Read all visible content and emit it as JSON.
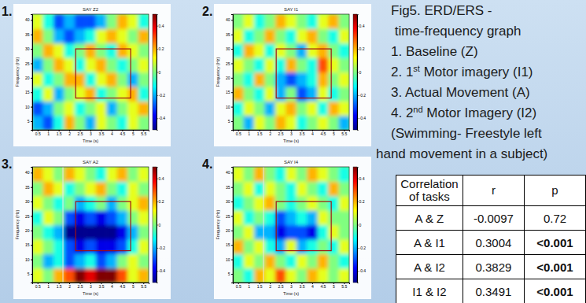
{
  "chart_data": [
    {
      "type": "heatmap",
      "panel_label": "1.",
      "title": "SAY Z2",
      "x_label": "Time (s)",
      "y_label": "Frequency (Hz)",
      "xlim": [
        0.25,
        5.75
      ],
      "ylim": [
        2,
        42
      ],
      "xticks": [
        0.5,
        1,
        1.5,
        2,
        2.5,
        3,
        3.5,
        4,
        4.5,
        5,
        5.5
      ],
      "yticks": [
        5,
        10,
        15,
        20,
        25,
        30,
        35,
        40
      ],
      "x_bins": [
        0.25,
        0.75,
        1.25,
        1.75,
        2.25,
        2.75,
        3.25,
        3.75,
        4.25,
        4.75,
        5.25,
        5.75
      ],
      "y_bins": [
        2,
        7,
        12,
        17,
        22,
        27,
        32,
        37,
        42
      ],
      "cells": [
        [
          -0.2,
          -0.3,
          -0.1,
          0.2,
          0,
          -0.2,
          0.1,
          0,
          -0.1,
          0.1,
          0
        ],
        [
          -0.3,
          -0.2,
          0,
          0.1,
          -0.1,
          0,
          0.1,
          -0.2,
          0,
          0.1,
          0.2
        ],
        [
          -0.1,
          0.1,
          -0.2,
          0,
          0.1,
          0.2,
          -0.1,
          0,
          0.1,
          0.2,
          -0.1
        ],
        [
          0.1,
          -0.1,
          0,
          0.2,
          0.2,
          -0.1,
          0.1,
          0.2,
          0,
          -0.2,
          0
        ],
        [
          -0.2,
          0,
          0.2,
          0.1,
          -0.1,
          0.1,
          0.2,
          0,
          -0.1,
          0,
          0.1
        ],
        [
          0,
          0.2,
          0.1,
          -0.1,
          0,
          0.2,
          0,
          -0.1,
          0.2,
          0.1,
          0
        ],
        [
          0.2,
          0,
          -0.2,
          -0.3,
          -0.2,
          -0.1,
          0.1,
          0.2,
          0.1,
          0,
          0.2
        ],
        [
          0.1,
          -0.1,
          -0.3,
          -0.2,
          -0.3,
          -0.3,
          -0.2,
          0,
          0.2,
          0.1,
          -0.1
        ]
      ],
      "colorbar": {
        "range": [
          -0.5,
          0.5
        ],
        "ticks": [
          -0.4,
          -0.2,
          0,
          0.2,
          0.4
        ]
      },
      "roi": {
        "x": [
          2.3,
          4.9
        ],
        "y": [
          13,
          30
        ]
      }
    },
    {
      "type": "heatmap",
      "panel_label": "2.",
      "title": "SAY I1",
      "x_label": "Time (s)",
      "y_label": "Frequency (Hz)",
      "xlim": [
        0.25,
        5.75
      ],
      "ylim": [
        2,
        42
      ],
      "xticks": [
        0.5,
        1,
        1.5,
        2,
        2.5,
        3,
        3.5,
        4,
        4.5,
        5,
        5.5
      ],
      "yticks": [
        5,
        10,
        15,
        20,
        25,
        30,
        35,
        40
      ],
      "x_bins": [
        0.25,
        0.75,
        1.25,
        1.75,
        2.25,
        2.75,
        3.25,
        3.75,
        4.25,
        4.75,
        5.25,
        5.75
      ],
      "y_bins": [
        2,
        7,
        12,
        17,
        22,
        27,
        32,
        37,
        42
      ],
      "cells": [
        [
          0,
          -0.2,
          0.1,
          0,
          0.2,
          0.1,
          -0.1,
          0,
          0.1,
          0,
          -0.2
        ],
        [
          -0.1,
          0.1,
          0,
          -0.2,
          0.1,
          0.2,
          0,
          0.1,
          -0.1,
          0.2,
          0.1
        ],
        [
          0.2,
          0,
          -0.1,
          0.1,
          -0.2,
          0,
          -0.3,
          -0.2,
          0.1,
          -0.1,
          0
        ],
        [
          0,
          -0.1,
          0.2,
          0,
          -0.2,
          -0.3,
          -0.2,
          -0.1,
          0.2,
          0,
          0.1
        ],
        [
          0.1,
          0,
          -0.1,
          0.1,
          -0.1,
          0.2,
          0,
          -0.1,
          0.3,
          0.1,
          0
        ],
        [
          -0.1,
          0.2,
          0.1,
          -0.1,
          0.1,
          0,
          -0.2,
          0.1,
          0.2,
          0,
          -0.1
        ],
        [
          0.1,
          -0.1,
          0,
          0.2,
          0,
          -0.1,
          0.1,
          0.2,
          0,
          -0.1,
          0.1
        ],
        [
          0,
          0.1,
          -0.1,
          0,
          0.2,
          0.1,
          0,
          -0.1,
          0.1,
          0.2,
          0
        ]
      ],
      "colorbar": {
        "range": [
          -0.5,
          0.5
        ],
        "ticks": [
          -0.4,
          -0.2,
          0,
          0.2,
          0.4
        ]
      },
      "roi": {
        "x": [
          2.3,
          4.9
        ],
        "y": [
          13,
          30
        ]
      }
    },
    {
      "type": "heatmap",
      "panel_label": "3.",
      "title": "SAY A2",
      "x_label": "Time (s)",
      "y_label": "Frequency (Hz)",
      "xlim": [
        0.25,
        5.75
      ],
      "ylim": [
        2,
        42
      ],
      "xticks": [
        0.5,
        1,
        1.5,
        2,
        2.5,
        3,
        3.5,
        4,
        4.5,
        5,
        5.5
      ],
      "yticks": [
        5,
        10,
        15,
        20,
        25,
        30,
        35,
        40
      ],
      "x_bins": [
        0.25,
        0.75,
        1.25,
        1.75,
        2.25,
        2.75,
        3.25,
        3.75,
        4.25,
        4.75,
        5.25,
        5.75
      ],
      "y_bins": [
        2,
        7,
        12,
        17,
        22,
        27,
        32,
        37,
        42
      ],
      "cells": [
        [
          0.1,
          0,
          0.2,
          0.3,
          0.5,
          0.4,
          0.5,
          0.5,
          0.3,
          0.1,
          0.2
        ],
        [
          0,
          -0.2,
          -0.1,
          -0.3,
          -0.2,
          -0.1,
          -0.3,
          -0.2,
          0,
          0.1,
          0
        ],
        [
          0.1,
          0,
          -0.1,
          -0.3,
          -0.4,
          -0.3,
          -0.4,
          -0.4,
          -0.3,
          -0.1,
          0.1
        ],
        [
          0,
          -0.1,
          -0.2,
          -0.5,
          -0.5,
          -0.5,
          -0.5,
          -0.5,
          -0.4,
          -0.2,
          0
        ],
        [
          -0.1,
          0.1,
          0,
          -0.3,
          -0.4,
          -0.3,
          -0.4,
          -0.3,
          -0.2,
          0,
          0.1
        ],
        [
          0.1,
          0,
          -0.1,
          0,
          -0.2,
          -0.1,
          0,
          -0.2,
          0,
          0.1,
          0.2
        ],
        [
          0,
          0.2,
          0.1,
          -0.1,
          0,
          0.1,
          0.2,
          0,
          -0.1,
          0.1,
          0
        ],
        [
          0.2,
          0.1,
          0,
          0.2,
          0.1,
          0,
          -0.1,
          0.1,
          0.2,
          0,
          0.1
        ]
      ],
      "colorbar": {
        "range": [
          -0.5,
          0.5
        ],
        "ticks": [
          -0.4,
          -0.2,
          0,
          0.2,
          0.4
        ]
      },
      "roi": {
        "x": [
          2.3,
          4.9
        ],
        "y": [
          13,
          30
        ]
      },
      "vline": 1.7
    },
    {
      "type": "heatmap",
      "panel_label": "4.",
      "title": "SAY I4",
      "x_label": "Time (s)",
      "y_label": "Frequency (Hz)",
      "xlim": [
        0.25,
        5.75
      ],
      "ylim": [
        2,
        42
      ],
      "xticks": [
        0.5,
        1,
        1.5,
        2,
        2.5,
        3,
        3.5,
        4,
        4.5,
        5,
        5.5
      ],
      "yticks": [
        5,
        10,
        15,
        20,
        25,
        30,
        35,
        40
      ],
      "x_bins": [
        0.25,
        0.75,
        1.25,
        1.75,
        2.25,
        2.75,
        3.25,
        3.75,
        4.25,
        4.75,
        5.25,
        5.75
      ],
      "y_bins": [
        2,
        7,
        12,
        17,
        22,
        27,
        32,
        37,
        42
      ],
      "cells": [
        [
          0,
          -0.1,
          0.2,
          0.1,
          0.3,
          0.1,
          0,
          0.2,
          0.1,
          0,
          0.1
        ],
        [
          -0.1,
          0.1,
          0,
          0.2,
          0,
          -0.1,
          0.1,
          0,
          0.2,
          0,
          -0.1
        ],
        [
          0.2,
          0,
          0.1,
          -0.1,
          -0.2,
          0.1,
          -0.2,
          -0.1,
          0,
          -0.1,
          0.1
        ],
        [
          0,
          0.1,
          -0.2,
          -0.2,
          -0.4,
          -0.3,
          -0.3,
          -0.4,
          -0.1,
          0.1,
          0
        ],
        [
          0.1,
          -0.1,
          0,
          -0.1,
          -0.3,
          -0.2,
          -0.1,
          -0.2,
          0.1,
          0,
          0
        ],
        [
          -0.1,
          0,
          0.1,
          0.2,
          0,
          -0.1,
          0,
          0.1,
          0,
          -0.1,
          0.1
        ],
        [
          0,
          0.1,
          -0.1,
          0.1,
          0,
          -0.1,
          0.1,
          0,
          -0.1,
          0.2,
          0
        ],
        [
          0.1,
          0,
          0.2,
          0,
          -0.1,
          0.1,
          0,
          0.2,
          0.1,
          0,
          -0.1
        ]
      ],
      "colorbar": {
        "range": [
          -0.5,
          0.5
        ],
        "ticks": [
          -0.4,
          -0.2,
          0,
          0.2,
          0.4
        ]
      },
      "roi": {
        "x": [
          2.3,
          4.9
        ],
        "y": [
          13,
          30
        ]
      },
      "vline": 1.7
    }
  ],
  "caption": {
    "lines": [
      "Fig5. ERD/ERS -",
      " time-frequency graph",
      "1. Baseline (Z)",
      "2. 1st Motor imagery (I1)",
      "3. Actual Movement (A)",
      "4. 2nd Motor Imagery (I2)",
      "(Swimming- Freestyle left",
      "hand movement in a subject)"
    ]
  },
  "table": {
    "header": [
      "Correlation of tasks",
      "r",
      "p"
    ],
    "rows": [
      [
        "A & Z",
        -0.0097,
        0.72
      ],
      [
        "A & I1",
        0.3004,
        "<0.001"
      ],
      [
        "A & I2",
        0.3829,
        "<0.001"
      ],
      [
        "I1 & I2",
        0.3491,
        "<0.001"
      ]
    ]
  }
}
